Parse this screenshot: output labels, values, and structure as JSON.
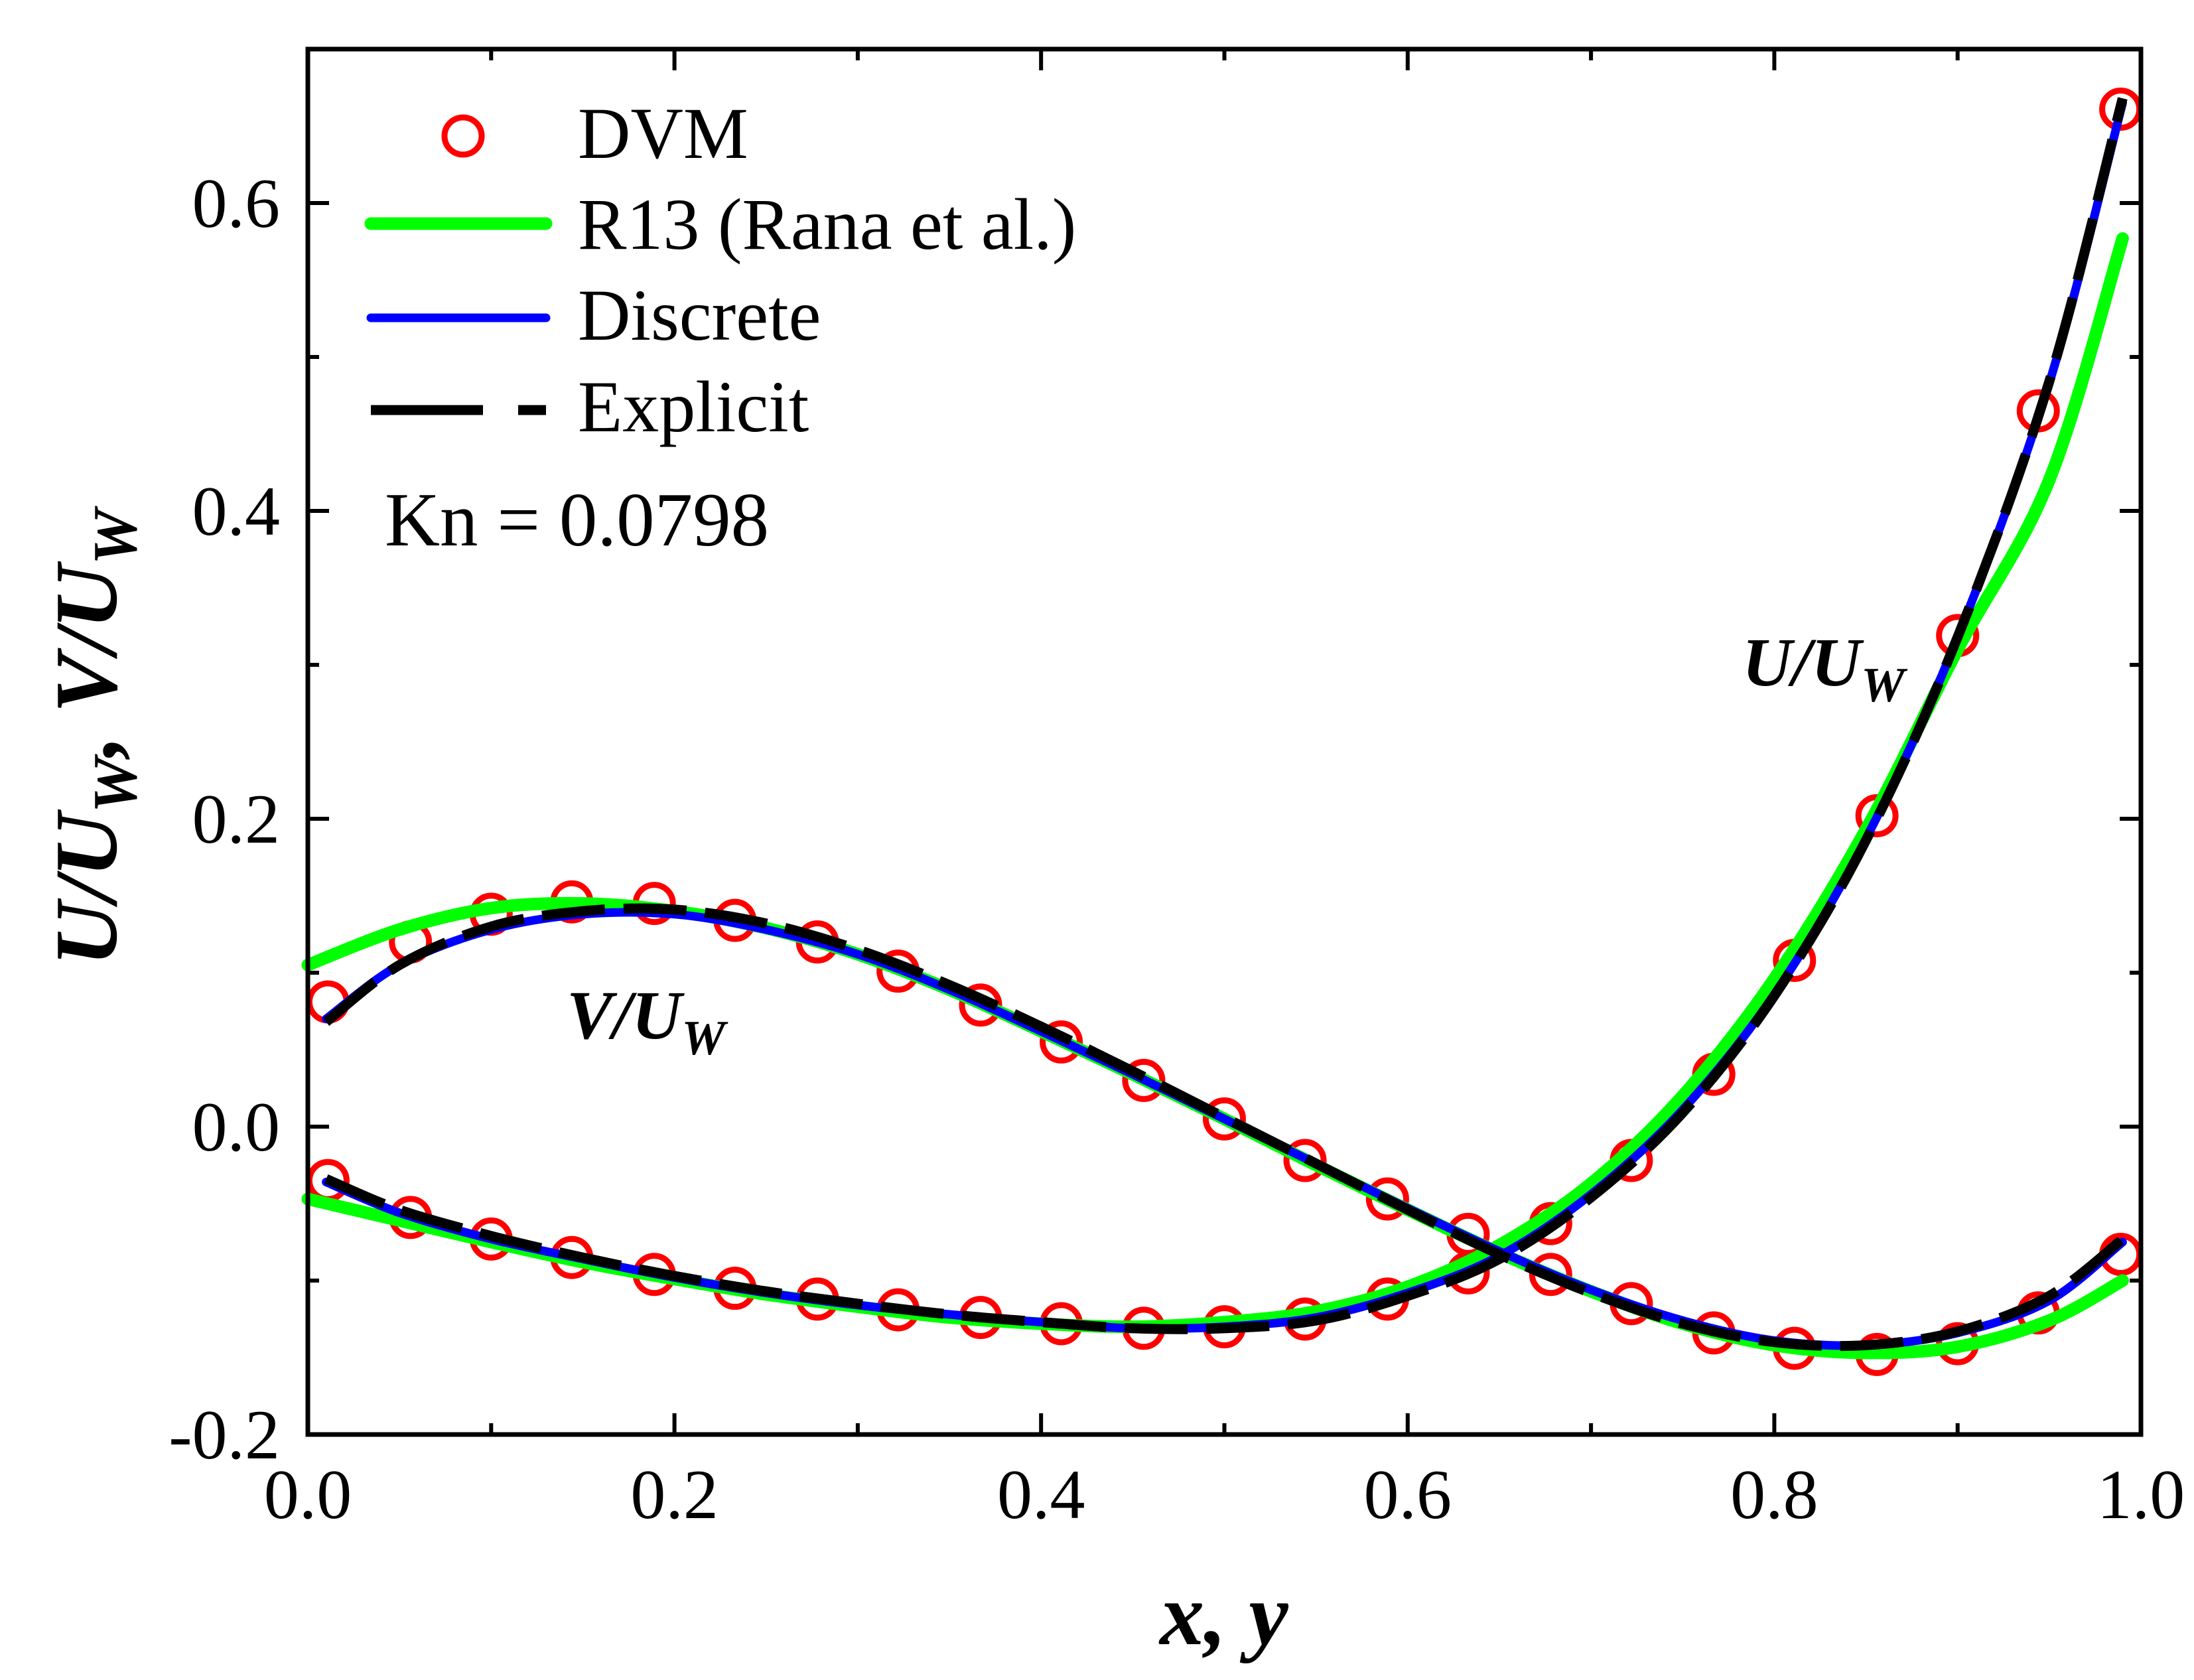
{
  "chart_data": {
    "type": "line",
    "title": "",
    "xlabel": "x, y",
    "ylabel_parts": [
      {
        "text": "U/U"
      },
      {
        "text": "W",
        "sub": true
      },
      {
        "text": ", V/U"
      },
      {
        "text": "W",
        "sub": true
      }
    ],
    "xlim": [
      0.0,
      1.0
    ],
    "ylim": [
      -0.2,
      0.7
    ],
    "x_ticks": [
      0.0,
      0.2,
      0.4,
      0.6,
      0.8,
      1.0
    ],
    "x_tick_labels": [
      "0.0",
      "0.2",
      "0.4",
      "0.6",
      "0.8",
      "1.0"
    ],
    "x_minor_ticks": [
      0.1,
      0.3,
      0.5,
      0.7,
      0.9
    ],
    "y_ticks": [
      -0.2,
      0.0,
      0.2,
      0.4,
      0.6
    ],
    "y_tick_labels": [
      "-0.2",
      "0.0",
      "0.2",
      "0.4",
      "0.6"
    ],
    "y_minor_ticks": [
      -0.1,
      0.1,
      0.3,
      0.5
    ],
    "grid": false,
    "legend": {
      "position": "top-left"
    },
    "annotation": "Kn = 0.0798",
    "curve_labels": {
      "U": [
        {
          "text": "U/U"
        },
        {
          "text": "W",
          "sub": true
        }
      ],
      "V": [
        {
          "text": "V/U"
        },
        {
          "text": "W",
          "sub": true
        }
      ]
    },
    "series": [
      {
        "name": "DVM",
        "color": "#ff0000",
        "markers": true,
        "U": {
          "x": [
            0.011,
            0.056,
            0.1,
            0.144,
            0.189,
            0.233,
            0.278,
            0.322,
            0.367,
            0.411,
            0.456,
            0.5,
            0.544,
            0.589,
            0.633,
            0.678,
            0.722,
            0.767,
            0.811,
            0.856,
            0.9,
            0.944,
            0.989
          ],
          "y": [
            -0.035,
            -0.059,
            -0.073,
            -0.085,
            -0.096,
            -0.105,
            -0.112,
            -0.119,
            -0.124,
            -0.128,
            -0.131,
            -0.13,
            -0.125,
            -0.112,
            -0.095,
            -0.063,
            -0.022,
            0.034,
            0.108,
            0.202,
            0.319,
            0.465,
            0.661
          ]
        },
        "V": {
          "x": [
            0.011,
            0.056,
            0.1,
            0.144,
            0.189,
            0.233,
            0.278,
            0.322,
            0.367,
            0.411,
            0.456,
            0.5,
            0.544,
            0.589,
            0.633,
            0.678,
            0.722,
            0.767,
            0.811,
            0.856,
            0.9,
            0.944,
            0.989
          ],
          "y": [
            0.081,
            0.12,
            0.138,
            0.146,
            0.145,
            0.134,
            0.12,
            0.101,
            0.079,
            0.055,
            0.03,
            0.005,
            -0.022,
            -0.047,
            -0.07,
            -0.096,
            -0.115,
            -0.134,
            -0.144,
            -0.148,
            -0.141,
            -0.121,
            -0.083
          ]
        }
      },
      {
        "name": "R13 (Rana et al.)",
        "color": "#00ff00",
        "U": {
          "x": [
            0.0,
            0.05,
            0.1,
            0.15,
            0.2,
            0.25,
            0.3,
            0.35,
            0.4,
            0.45,
            0.5,
            0.55,
            0.6,
            0.65,
            0.7,
            0.75,
            0.8,
            0.85,
            0.9,
            0.95,
            0.99
          ],
          "y": [
            -0.047,
            -0.061,
            -0.075,
            -0.088,
            -0.099,
            -0.109,
            -0.117,
            -0.124,
            -0.128,
            -0.13,
            -0.127,
            -0.12,
            -0.104,
            -0.077,
            -0.037,
            0.02,
            0.096,
            0.193,
            0.31,
            0.42,
            0.577
          ]
        },
        "V": {
          "x": [
            0.0,
            0.05,
            0.1,
            0.15,
            0.2,
            0.25,
            0.3,
            0.35,
            0.4,
            0.45,
            0.5,
            0.55,
            0.6,
            0.65,
            0.7,
            0.75,
            0.8,
            0.85,
            0.9,
            0.95,
            0.99
          ],
          "y": [
            0.105,
            0.128,
            0.142,
            0.145,
            0.14,
            0.129,
            0.112,
            0.089,
            0.062,
            0.034,
            0.005,
            -0.025,
            -0.054,
            -0.082,
            -0.107,
            -0.128,
            -0.142,
            -0.147,
            -0.143,
            -0.126,
            -0.1
          ]
        }
      },
      {
        "name": "Discrete",
        "color": "#0000ff",
        "U": {
          "x": [
            0.01,
            0.05,
            0.1,
            0.15,
            0.2,
            0.25,
            0.3,
            0.35,
            0.4,
            0.45,
            0.5,
            0.55,
            0.6,
            0.65,
            0.7,
            0.75,
            0.8,
            0.85,
            0.9,
            0.95,
            0.99
          ],
          "y": [
            -0.036,
            -0.056,
            -0.073,
            -0.086,
            -0.098,
            -0.108,
            -0.116,
            -0.122,
            -0.127,
            -0.131,
            -0.13,
            -0.124,
            -0.108,
            -0.084,
            -0.044,
            0.011,
            0.086,
            0.187,
            0.318,
            0.483,
            0.665
          ]
        },
        "V": {
          "x": [
            0.01,
            0.05,
            0.1,
            0.15,
            0.2,
            0.25,
            0.3,
            0.35,
            0.4,
            0.45,
            0.5,
            0.55,
            0.6,
            0.65,
            0.7,
            0.75,
            0.8,
            0.85,
            0.9,
            0.95,
            0.99
          ],
          "y": [
            0.07,
            0.105,
            0.128,
            0.138,
            0.138,
            0.128,
            0.112,
            0.089,
            0.062,
            0.034,
            0.005,
            -0.024,
            -0.053,
            -0.081,
            -0.106,
            -0.126,
            -0.139,
            -0.142,
            -0.134,
            -0.113,
            -0.075
          ]
        }
      },
      {
        "name": "Explicit",
        "color": "#000000",
        "dash": true,
        "U": {
          "x": [
            0.01,
            0.05,
            0.1,
            0.15,
            0.2,
            0.25,
            0.3,
            0.35,
            0.4,
            0.45,
            0.5,
            0.55,
            0.6,
            0.65,
            0.7,
            0.75,
            0.8,
            0.85,
            0.9,
            0.95,
            0.99
          ],
          "y": [
            -0.034,
            -0.054,
            -0.071,
            -0.085,
            -0.097,
            -0.107,
            -0.115,
            -0.122,
            -0.127,
            -0.131,
            -0.131,
            -0.126,
            -0.11,
            -0.086,
            -0.046,
            0.009,
            0.085,
            0.186,
            0.318,
            0.484,
            0.668
          ]
        },
        "V": {
          "x": [
            0.01,
            0.05,
            0.1,
            0.15,
            0.2,
            0.25,
            0.3,
            0.35,
            0.4,
            0.45,
            0.5,
            0.55,
            0.6,
            0.65,
            0.7,
            0.75,
            0.8,
            0.85,
            0.9,
            0.95,
            0.99
          ],
          "y": [
            0.068,
            0.105,
            0.13,
            0.14,
            0.141,
            0.132,
            0.115,
            0.092,
            0.065,
            0.036,
            0.006,
            -0.024,
            -0.054,
            -0.083,
            -0.108,
            -0.128,
            -0.14,
            -0.142,
            -0.133,
            -0.11,
            -0.073
          ]
        }
      }
    ]
  }
}
